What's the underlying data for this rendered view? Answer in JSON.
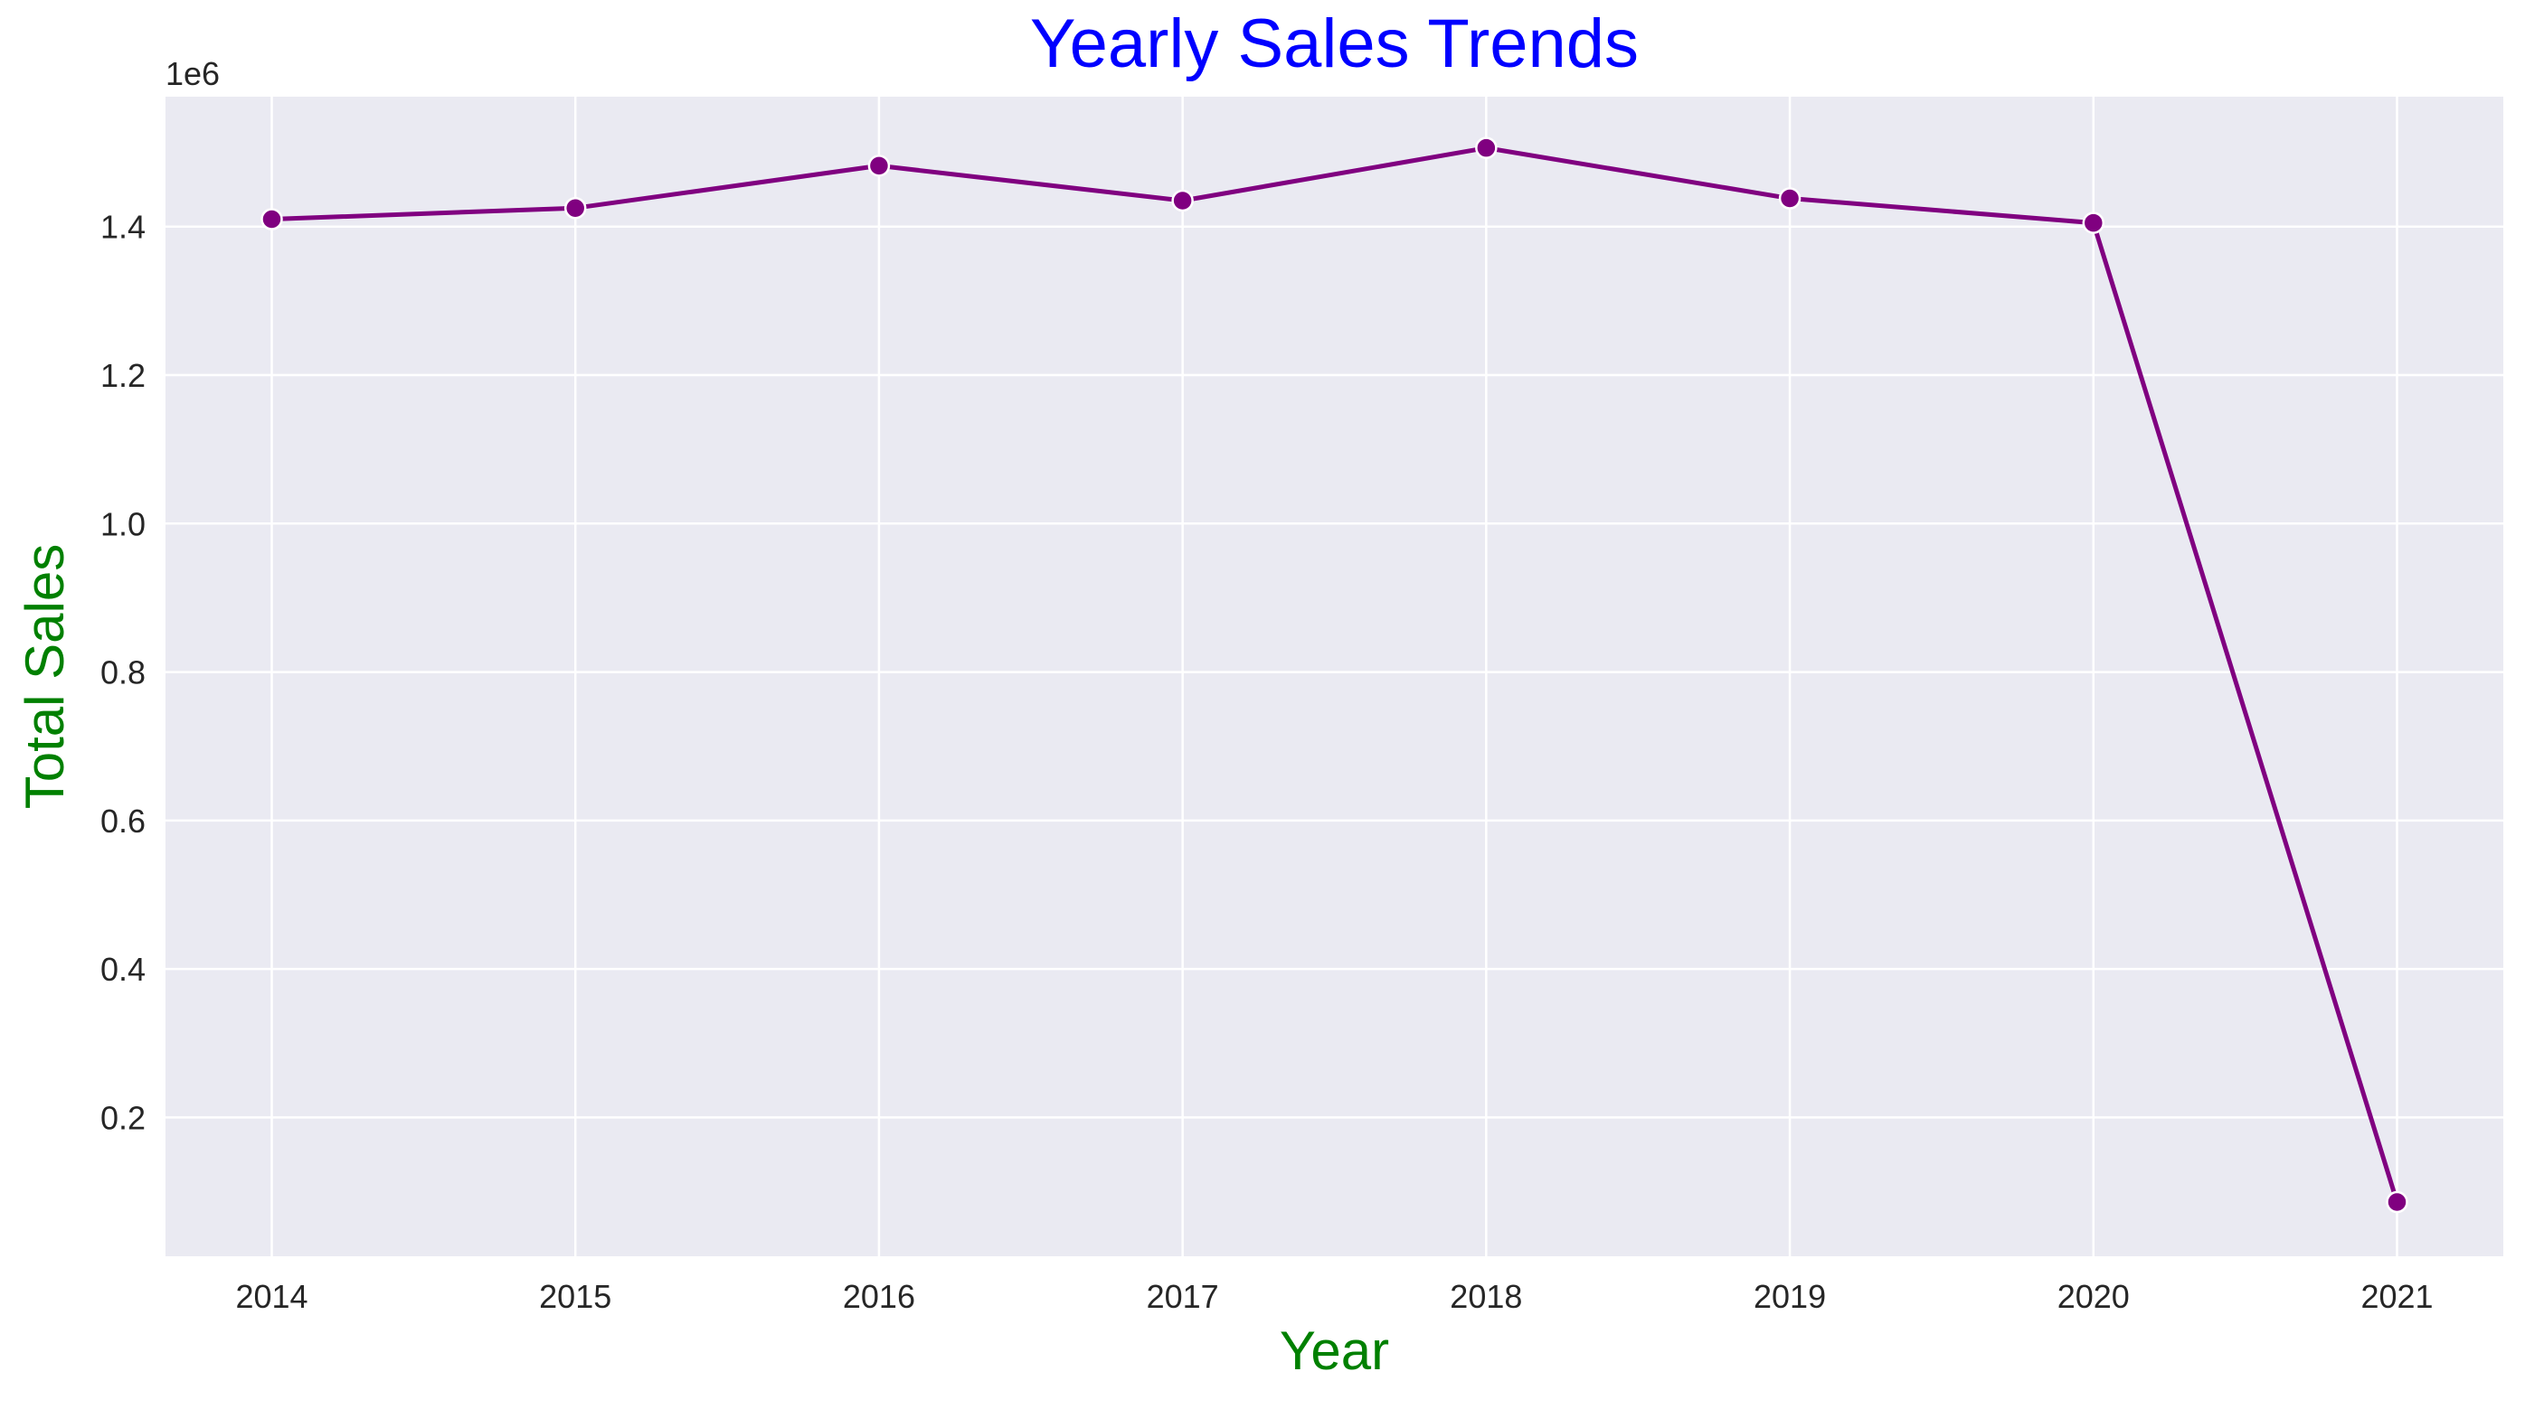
{
  "colors": {
    "title": "#0000ff",
    "axis_label": "#008000",
    "line": "#800080",
    "plot_background": "#eaeaf2",
    "grid": "#ffffff",
    "tick_text": "#262626"
  },
  "chart_data": {
    "type": "line",
    "title": "Yearly Sales Trends",
    "xlabel": "Year",
    "ylabel": "Total Sales",
    "y_offset_label": "1e6",
    "x": [
      2014,
      2015,
      2016,
      2017,
      2018,
      2019,
      2020,
      2021
    ],
    "x_tick_labels": [
      "2014",
      "2015",
      "2016",
      "2017",
      "2018",
      "2019",
      "2020",
      "2021"
    ],
    "y_ticks": [
      0.2,
      0.4,
      0.6,
      0.8,
      1.0,
      1.2,
      1.4
    ],
    "y_tick_labels": [
      "0.2",
      "0.4",
      "0.6",
      "0.8",
      "1.0",
      "1.2",
      "1.4"
    ],
    "xlim": [
      2013.65,
      2021.35
    ],
    "ylim": [
      0.013,
      1.575
    ],
    "series": [
      {
        "values": [
          1.41,
          1.425,
          1.482,
          1.435,
          1.506,
          1.438,
          1.405,
          0.086
        ],
        "marker": "circle"
      }
    ],
    "grid": true,
    "legend": "none"
  }
}
